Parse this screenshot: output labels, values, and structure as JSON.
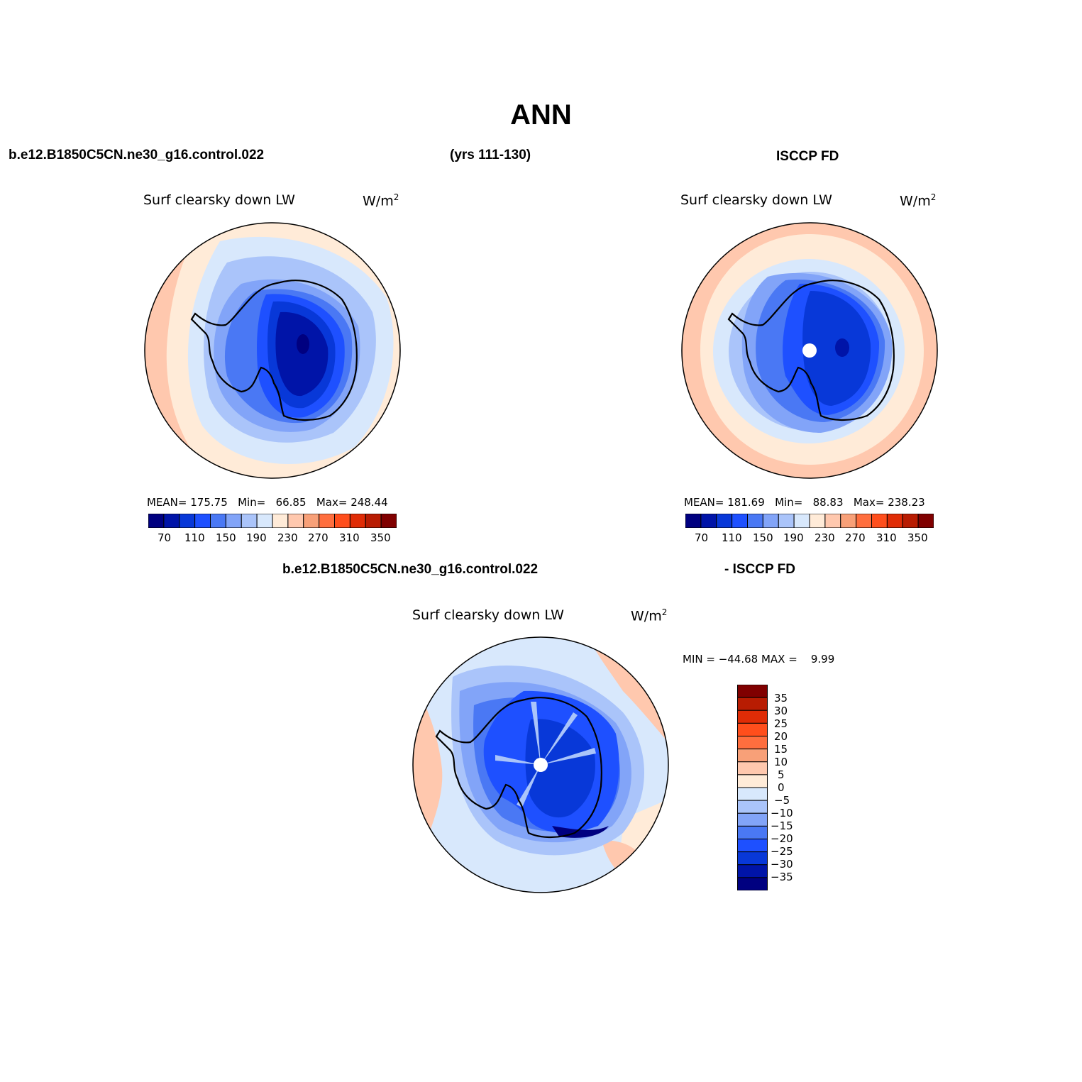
{
  "title": "ANN",
  "header": {
    "case_name": "b.e12.B1850C5CN.ne30_g16.control.022",
    "years": "(yrs 111-130)",
    "obs_name": "ISCCP FD"
  },
  "colors": {
    "full_scale": [
      "#000080",
      "#0014a8",
      "#0838d8",
      "#1e50ff",
      "#4a78f4",
      "#82a4f8",
      "#aac4fa",
      "#d8e8fc",
      "#ffebd8",
      "#ffc8ae",
      "#f8a078",
      "#ff6e3e",
      "#ff4e1c",
      "#e02c06",
      "#b81c02",
      "#800000"
    ],
    "diff_scale": [
      "#000080",
      "#0014a8",
      "#0838d8",
      "#1e50ff",
      "#4a78f4",
      "#82a4f8",
      "#aac4fa",
      "#d8e8fc",
      "#ffebd8",
      "#ffc8ae",
      "#f8a078",
      "#ff6e3e",
      "#ff4e1c",
      "#e02c06",
      "#b81c02",
      "#800000"
    ]
  },
  "panels": {
    "model": {
      "title": "Surf clearsky down LW",
      "units_base": "W/m",
      "units_exp": "2",
      "mean_label": "MEAN=",
      "mean": "175.75",
      "min_label": "Min=",
      "min": "66.85",
      "max_label": "Max=",
      "max": "248.44",
      "ticks": [
        "70",
        "110",
        "150",
        "190",
        "230",
        "270",
        "310",
        "350"
      ]
    },
    "obs": {
      "title": "Surf clearsky down LW",
      "units_base": "W/m",
      "units_exp": "2",
      "mean_label": "MEAN=",
      "mean": "181.69",
      "min_label": "Min=",
      "min": "88.83",
      "max_label": "Max=",
      "max": "238.23",
      "ticks": [
        "70",
        "110",
        "150",
        "190",
        "230",
        "270",
        "310",
        "350"
      ]
    },
    "diff": {
      "header_left": "b.e12.B1850C5CN.ne30_g16.control.022",
      "header_right": "- ISCCP FD",
      "title": "Surf clearsky down LW",
      "units_base": "W/m",
      "units_exp": "2",
      "minmax": "MIN = −44.68 MAX =    9.99",
      "ticks": [
        "35",
        "30",
        "25",
        "20",
        "15",
        "10",
        "5",
        "0",
        "−5",
        "−10",
        "−15",
        "−20",
        "−25",
        "−30",
        "−35"
      ]
    }
  }
}
